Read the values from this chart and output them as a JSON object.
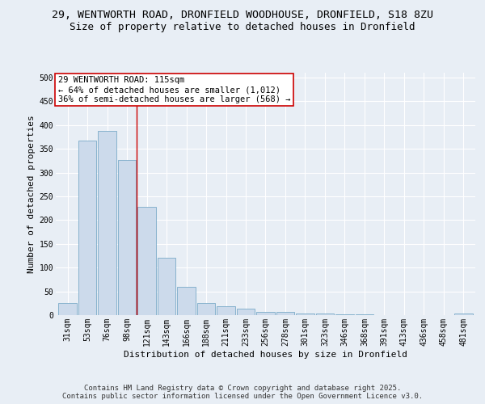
{
  "title_line1": "29, WENTWORTH ROAD, DRONFIELD WOODHOUSE, DRONFIELD, S18 8ZU",
  "title_line2": "Size of property relative to detached houses in Dronfield",
  "xlabel": "Distribution of detached houses by size in Dronfield",
  "ylabel": "Number of detached properties",
  "categories": [
    "31sqm",
    "53sqm",
    "76sqm",
    "98sqm",
    "121sqm",
    "143sqm",
    "166sqm",
    "188sqm",
    "211sqm",
    "233sqm",
    "256sqm",
    "278sqm",
    "301sqm",
    "323sqm",
    "346sqm",
    "368sqm",
    "391sqm",
    "413sqm",
    "436sqm",
    "458sqm",
    "481sqm"
  ],
  "values": [
    25,
    368,
    388,
    327,
    228,
    120,
    60,
    25,
    18,
    14,
    7,
    6,
    4,
    3,
    1,
    1,
    0,
    0,
    0,
    0,
    3
  ],
  "bar_color": "#ccdaeb",
  "bar_edge_color": "#7aaac8",
  "vline_x": 3.5,
  "vline_color": "#cc0000",
  "annotation_text": "29 WENTWORTH ROAD: 115sqm\n← 64% of detached houses are smaller (1,012)\n36% of semi-detached houses are larger (568) →",
  "annotation_box_color": "#ffffff",
  "annotation_box_edge": "#cc0000",
  "ylim": [
    0,
    510
  ],
  "yticks": [
    0,
    50,
    100,
    150,
    200,
    250,
    300,
    350,
    400,
    450,
    500
  ],
  "footer_text": "Contains HM Land Registry data © Crown copyright and database right 2025.\nContains public sector information licensed under the Open Government Licence v3.0.",
  "bg_color": "#e8eef5",
  "plot_bg_color": "#e8eef5",
  "grid_color": "#ffffff",
  "title_fontsize": 9.5,
  "subtitle_fontsize": 9,
  "axis_label_fontsize": 8,
  "tick_fontsize": 7,
  "annotation_fontsize": 7.5,
  "footer_fontsize": 6.5
}
